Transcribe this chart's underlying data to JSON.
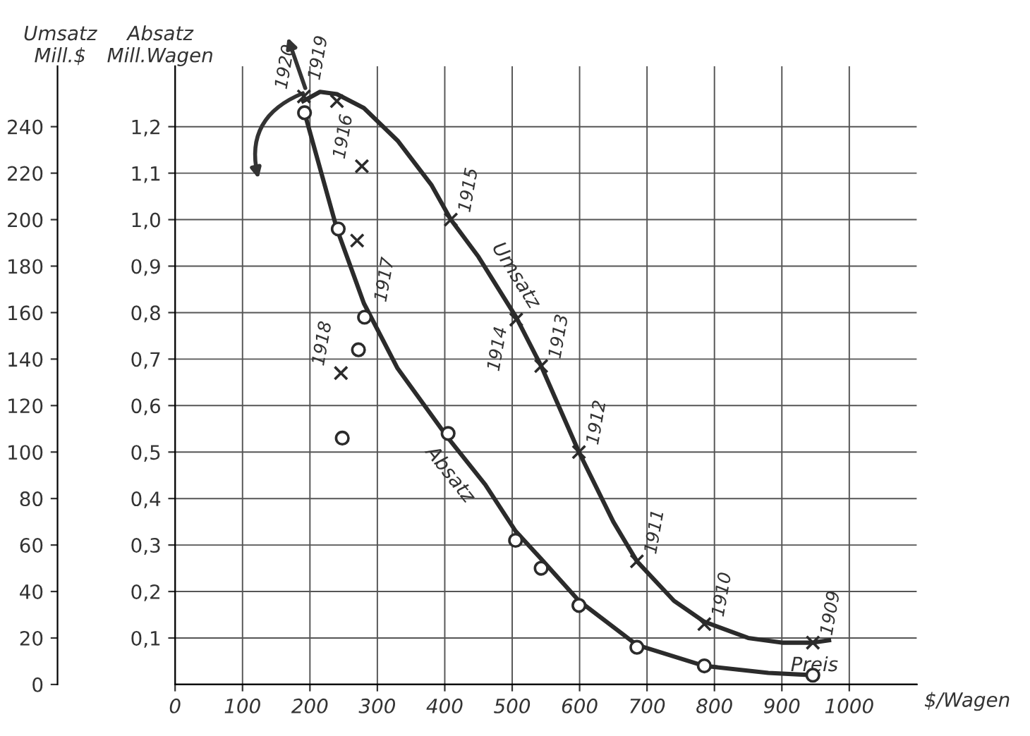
{
  "chart_data": {
    "type": "line",
    "xlabel": "$/Wagen",
    "ylabel": "Umsatz\nMill.$",
    "y2label": "Absatz\nMill.Wagen",
    "xlim": [
      0,
      1100
    ],
    "ylim": [
      0,
      266
    ],
    "y2lim": [
      0,
      1.33
    ],
    "xticks": [
      0,
      100,
      200,
      300,
      400,
      500,
      600,
      700,
      800,
      900,
      1000
    ],
    "yticks": [
      0,
      20,
      40,
      60,
      80,
      100,
      120,
      140,
      160,
      180,
      200,
      220,
      240
    ],
    "y2ticks": [
      {
        "value": 0.1,
        "label": "0,1"
      },
      {
        "value": 0.2,
        "label": "0,2"
      },
      {
        "value": 0.3,
        "label": "0,3"
      },
      {
        "value": 0.4,
        "label": "0,4"
      },
      {
        "value": 0.5,
        "label": "0,5"
      },
      {
        "value": 0.6,
        "label": "0,6"
      },
      {
        "value": 0.7,
        "label": "0,7"
      },
      {
        "value": 0.8,
        "label": "0,8"
      },
      {
        "value": 0.9,
        "label": "0,9"
      },
      {
        "value": 1.0,
        "label": "1,0"
      },
      {
        "value": 1.1,
        "label": "1,1"
      },
      {
        "value": 1.2,
        "label": "1,2"
      }
    ],
    "grid": true,
    "series": [
      {
        "name": "Umsatz",
        "type": "line",
        "color": "#2b2b2b",
        "x": [
          190,
          215,
          240,
          280,
          330,
          380,
          409,
          450,
          506,
          543,
          599,
          650,
          685,
          740,
          785,
          850,
          900,
          946,
          970
        ],
        "values": [
          251,
          255,
          254,
          248,
          234,
          215,
          200,
          184,
          158,
          137,
          100,
          70,
          53,
          36,
          27,
          20,
          18,
          18,
          19
        ]
      },
      {
        "type": "scatter",
        "marker": "cross",
        "color": "#2b2b2b",
        "x": [
          946,
          785,
          685,
          599,
          543,
          506,
          409,
          277,
          270,
          246,
          240,
          191
        ],
        "values": [
          18,
          26,
          53,
          100,
          137,
          157,
          200,
          223,
          191,
          134,
          251,
          253
        ]
      },
      {
        "name": "Absatz",
        "type": "line",
        "axis": "y2",
        "color": "#2b2b2b",
        "x": [
          192,
          240,
          280,
          330,
          405,
          460,
          505,
          543,
          599,
          685,
          785,
          880,
          946
        ],
        "values": [
          1.23,
          0.98,
          0.82,
          0.68,
          0.53,
          0.43,
          0.33,
          0.27,
          0.18,
          0.085,
          0.04,
          0.025,
          0.02
        ]
      },
      {
        "type": "scatter",
        "marker": "circle",
        "axis": "y2",
        "color": "#2b2b2b",
        "x": [
          946,
          785,
          685,
          599,
          543,
          505,
          405,
          281,
          272,
          248,
          242,
          192
        ],
        "values": [
          0.02,
          0.04,
          0.08,
          0.17,
          0.25,
          0.31,
          0.54,
          0.79,
          0.72,
          0.53,
          0.98,
          1.23
        ]
      }
    ],
    "annotations": [
      {
        "text": "1909",
        "x": 946,
        "y": 18
      },
      {
        "text": "1910",
        "x": 785,
        "y": 26
      },
      {
        "text": "1911",
        "x": 685,
        "y": 53
      },
      {
        "text": "1912",
        "x": 599,
        "y": 100
      },
      {
        "text": "1913",
        "x": 543,
        "y": 137
      },
      {
        "text": "1914",
        "x": 506,
        "y": 157
      },
      {
        "text": "1915",
        "x": 409,
        "y": 200
      },
      {
        "text": "1916",
        "x": 277,
        "y": 223
      },
      {
        "text": "1917",
        "x": 270,
        "y": 191
      },
      {
        "text": "1918",
        "x": 246,
        "y": 134
      },
      {
        "text": "1919",
        "x": 240,
        "y": 251
      },
      {
        "text": "1920",
        "x": 191,
        "y": 253
      },
      "Preis"
    ]
  }
}
